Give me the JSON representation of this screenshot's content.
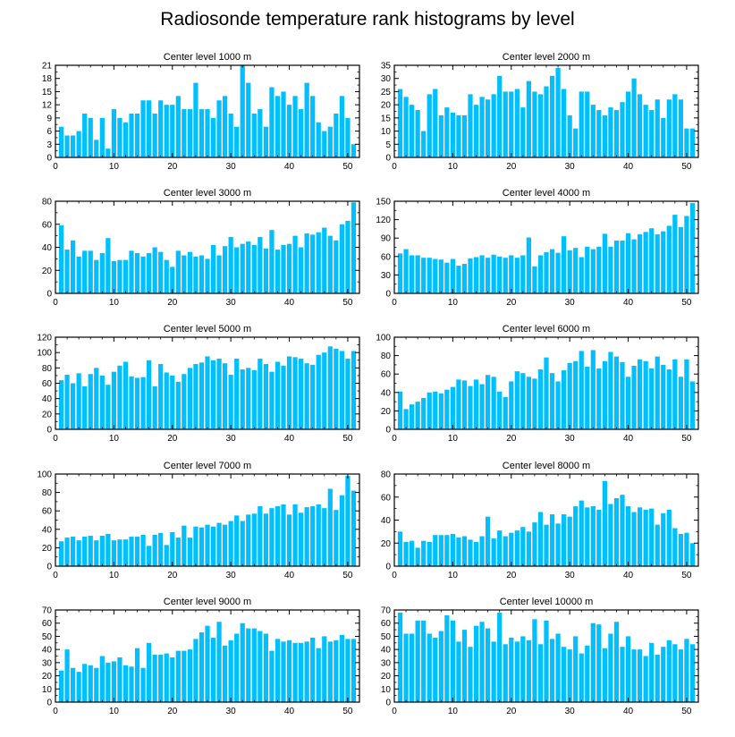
{
  "title": "Radiosonde temperature rank histograms by level",
  "colors": {
    "bar": "#00bfff",
    "axis": "#000000",
    "background": "#ffffff"
  },
  "chart_data": [
    {
      "type": "bar",
      "title": "Center level 1000 m",
      "xlabel": "",
      "ylabel": "",
      "xlim": [
        0,
        52
      ],
      "ylim": [
        0,
        21
      ],
      "xticks": [
        0,
        10,
        20,
        30,
        40,
        50
      ],
      "yticks": [
        0,
        3,
        6,
        9,
        12,
        15,
        18,
        21
      ],
      "x": [
        1,
        2,
        3,
        4,
        5,
        6,
        7,
        8,
        9,
        10,
        11,
        12,
        13,
        14,
        15,
        16,
        17,
        18,
        19,
        20,
        21,
        22,
        23,
        24,
        25,
        26,
        27,
        28,
        29,
        30,
        31,
        32,
        33,
        34,
        35,
        36,
        37,
        38,
        39,
        40,
        41,
        42,
        43,
        44,
        45,
        46,
        47,
        48,
        49,
        50,
        51
      ],
      "values": [
        7,
        5,
        5,
        6,
        10,
        9,
        4,
        9,
        2,
        11,
        9,
        8,
        10,
        10,
        13,
        13,
        10,
        13,
        12,
        12,
        14,
        11,
        11,
        17,
        11,
        11,
        9,
        13,
        14,
        10,
        7,
        21,
        17,
        10,
        11,
        7,
        16,
        14,
        15,
        12,
        14,
        11,
        17,
        14,
        8,
        6,
        7,
        10,
        14,
        9,
        3
      ]
    },
    {
      "type": "bar",
      "title": "Center level 2000 m",
      "xlabel": "",
      "ylabel": "",
      "xlim": [
        0,
        52
      ],
      "ylim": [
        0,
        35
      ],
      "xticks": [
        0,
        10,
        20,
        30,
        40,
        50
      ],
      "yticks": [
        0,
        5,
        10,
        15,
        20,
        25,
        30,
        35
      ],
      "x": [
        1,
        2,
        3,
        4,
        5,
        6,
        7,
        8,
        9,
        10,
        11,
        12,
        13,
        14,
        15,
        16,
        17,
        18,
        19,
        20,
        21,
        22,
        23,
        24,
        25,
        26,
        27,
        28,
        29,
        30,
        31,
        32,
        33,
        34,
        35,
        36,
        37,
        38,
        39,
        40,
        41,
        42,
        43,
        44,
        45,
        46,
        47,
        48,
        49,
        50,
        51
      ],
      "values": [
        26,
        23,
        20,
        18,
        10,
        24,
        26,
        16,
        19,
        17,
        16,
        16,
        24,
        20,
        23,
        22,
        24,
        31,
        25,
        25,
        26,
        19,
        29,
        25,
        24,
        27,
        31,
        34,
        26,
        16,
        11,
        25,
        25,
        20,
        18,
        16,
        19,
        18,
        21,
        25,
        30,
        24,
        20,
        18,
        22,
        15,
        22,
        24,
        22,
        11,
        11
      ]
    },
    {
      "type": "bar",
      "title": "Center level 3000 m",
      "xlabel": "",
      "ylabel": "",
      "xlim": [
        0,
        52
      ],
      "ylim": [
        0,
        80
      ],
      "xticks": [
        0,
        10,
        20,
        30,
        40,
        50
      ],
      "yticks": [
        0,
        20,
        40,
        60,
        80
      ],
      "x": [
        1,
        2,
        3,
        4,
        5,
        6,
        7,
        8,
        9,
        10,
        11,
        12,
        13,
        14,
        15,
        16,
        17,
        18,
        19,
        20,
        21,
        22,
        23,
        24,
        25,
        26,
        27,
        28,
        29,
        30,
        31,
        32,
        33,
        34,
        35,
        36,
        37,
        38,
        39,
        40,
        41,
        42,
        43,
        44,
        45,
        46,
        47,
        48,
        49,
        50,
        51
      ],
      "values": [
        59,
        38,
        46,
        32,
        37,
        37,
        29,
        35,
        48,
        28,
        29,
        29,
        37,
        35,
        32,
        35,
        40,
        36,
        29,
        23,
        37,
        33,
        36,
        32,
        33,
        30,
        42,
        33,
        41,
        49,
        40,
        43,
        45,
        42,
        49,
        39,
        55,
        38,
        42,
        43,
        50,
        40,
        52,
        51,
        53,
        57,
        50,
        46,
        60,
        63,
        79
      ]
    },
    {
      "type": "bar",
      "title": "Center level 4000 m",
      "xlabel": "",
      "ylabel": "",
      "xlim": [
        0,
        52
      ],
      "ylim": [
        0,
        150
      ],
      "xticks": [
        0,
        10,
        20,
        30,
        40,
        50
      ],
      "yticks": [
        0,
        30,
        60,
        90,
        120,
        150
      ],
      "x": [
        1,
        2,
        3,
        4,
        5,
        6,
        7,
        8,
        9,
        10,
        11,
        12,
        13,
        14,
        15,
        16,
        17,
        18,
        19,
        20,
        21,
        22,
        23,
        24,
        25,
        26,
        27,
        28,
        29,
        30,
        31,
        32,
        33,
        34,
        35,
        36,
        37,
        38,
        39,
        40,
        41,
        42,
        43,
        44,
        45,
        46,
        47,
        48,
        49,
        50,
        51
      ],
      "values": [
        65,
        72,
        62,
        62,
        58,
        58,
        56,
        55,
        50,
        56,
        45,
        48,
        57,
        59,
        62,
        58,
        63,
        60,
        58,
        62,
        58,
        62,
        91,
        44,
        62,
        67,
        72,
        66,
        93,
        70,
        74,
        59,
        76,
        72,
        76,
        97,
        76,
        86,
        86,
        98,
        88,
        96,
        100,
        106,
        96,
        101,
        110,
        128,
        108,
        126,
        147
      ]
    },
    {
      "type": "bar",
      "title": "Center level 5000 m",
      "xlabel": "",
      "ylabel": "",
      "xlim": [
        0,
        52
      ],
      "ylim": [
        0,
        120
      ],
      "xticks": [
        0,
        10,
        20,
        30,
        40,
        50
      ],
      "yticks": [
        0,
        20,
        40,
        60,
        80,
        100,
        120
      ],
      "x": [
        1,
        2,
        3,
        4,
        5,
        6,
        7,
        8,
        9,
        10,
        11,
        12,
        13,
        14,
        15,
        16,
        17,
        18,
        19,
        20,
        21,
        22,
        23,
        24,
        25,
        26,
        27,
        28,
        29,
        30,
        31,
        32,
        33,
        34,
        35,
        36,
        37,
        38,
        39,
        40,
        41,
        42,
        43,
        44,
        45,
        46,
        47,
        48,
        49,
        50,
        51
      ],
      "values": [
        64,
        71,
        60,
        73,
        56,
        72,
        80,
        70,
        58,
        75,
        83,
        88,
        69,
        67,
        68,
        90,
        56,
        85,
        74,
        70,
        62,
        72,
        80,
        85,
        87,
        95,
        90,
        92,
        86,
        71,
        92,
        78,
        80,
        77,
        92,
        85,
        75,
        88,
        83,
        95,
        94,
        92,
        86,
        84,
        97,
        100,
        108,
        105,
        102,
        92,
        102
      ]
    },
    {
      "type": "bar",
      "title": "Center level 6000 m",
      "xlabel": "",
      "ylabel": "",
      "xlim": [
        0,
        52
      ],
      "ylim": [
        0,
        100
      ],
      "xticks": [
        0,
        10,
        20,
        30,
        40,
        50
      ],
      "yticks": [
        0,
        20,
        40,
        60,
        80,
        100
      ],
      "x": [
        1,
        2,
        3,
        4,
        5,
        6,
        7,
        8,
        9,
        10,
        11,
        12,
        13,
        14,
        15,
        16,
        17,
        18,
        19,
        20,
        21,
        22,
        23,
        24,
        25,
        26,
        27,
        28,
        29,
        30,
        31,
        32,
        33,
        34,
        35,
        36,
        37,
        38,
        39,
        40,
        41,
        42,
        43,
        44,
        45,
        46,
        47,
        48,
        49,
        50,
        51
      ],
      "values": [
        41,
        22,
        27,
        30,
        34,
        40,
        41,
        39,
        43,
        46,
        54,
        53,
        47,
        54,
        49,
        59,
        57,
        41,
        35,
        52,
        63,
        61,
        57,
        55,
        65,
        78,
        61,
        52,
        64,
        72,
        74,
        85,
        68,
        86,
        66,
        74,
        84,
        79,
        73,
        57,
        69,
        76,
        74,
        66,
        79,
        70,
        65,
        76,
        57,
        76,
        52
      ]
    },
    {
      "type": "bar",
      "title": "Center level 7000 m",
      "xlabel": "",
      "ylabel": "",
      "xlim": [
        0,
        52
      ],
      "ylim": [
        0,
        100
      ],
      "xticks": [
        0,
        10,
        20,
        30,
        40,
        50
      ],
      "yticks": [
        0,
        20,
        40,
        60,
        80,
        100
      ],
      "x": [
        1,
        2,
        3,
        4,
        5,
        6,
        7,
        8,
        9,
        10,
        11,
        12,
        13,
        14,
        15,
        16,
        17,
        18,
        19,
        20,
        21,
        22,
        23,
        24,
        25,
        26,
        27,
        28,
        29,
        30,
        31,
        32,
        33,
        34,
        35,
        36,
        37,
        38,
        39,
        40,
        41,
        42,
        43,
        44,
        45,
        46,
        47,
        48,
        49,
        50,
        51
      ],
      "values": [
        27,
        31,
        32,
        28,
        32,
        33,
        28,
        33,
        35,
        28,
        29,
        29,
        32,
        32,
        34,
        22,
        34,
        36,
        23,
        37,
        31,
        44,
        31,
        43,
        42,
        45,
        43,
        47,
        45,
        49,
        55,
        49,
        56,
        57,
        65,
        57,
        63,
        65,
        67,
        56,
        67,
        58,
        64,
        65,
        67,
        63,
        84,
        61,
        77,
        98,
        82
      ]
    },
    {
      "type": "bar",
      "title": "Center level 8000 m",
      "xlabel": "",
      "ylabel": "",
      "xlim": [
        0,
        52
      ],
      "ylim": [
        0,
        80
      ],
      "xticks": [
        0,
        10,
        20,
        30,
        40,
        50
      ],
      "yticks": [
        0,
        20,
        40,
        60,
        80
      ],
      "x": [
        1,
        2,
        3,
        4,
        5,
        6,
        7,
        8,
        9,
        10,
        11,
        12,
        13,
        14,
        15,
        16,
        17,
        18,
        19,
        20,
        21,
        22,
        23,
        24,
        25,
        26,
        27,
        28,
        29,
        30,
        31,
        32,
        33,
        34,
        35,
        36,
        37,
        38,
        39,
        40,
        41,
        42,
        43,
        44,
        45,
        46,
        47,
        48,
        49,
        50,
        51
      ],
      "values": [
        30,
        21,
        22,
        16,
        22,
        21,
        27,
        27,
        27,
        28,
        25,
        26,
        23,
        21,
        26,
        43,
        24,
        31,
        26,
        29,
        31,
        34,
        30,
        38,
        47,
        36,
        45,
        37,
        45,
        43,
        52,
        57,
        51,
        52,
        49,
        74,
        54,
        59,
        62,
        52,
        47,
        51,
        49,
        50,
        36,
        46,
        49,
        33,
        28,
        29,
        20
      ]
    },
    {
      "type": "bar",
      "title": "Center level 9000 m",
      "xlabel": "",
      "ylabel": "",
      "xlim": [
        0,
        52
      ],
      "ylim": [
        0,
        70
      ],
      "xticks": [
        0,
        10,
        20,
        30,
        40,
        50
      ],
      "yticks": [
        0,
        10,
        20,
        30,
        40,
        50,
        60,
        70
      ],
      "x": [
        1,
        2,
        3,
        4,
        5,
        6,
        7,
        8,
        9,
        10,
        11,
        12,
        13,
        14,
        15,
        16,
        17,
        18,
        19,
        20,
        21,
        22,
        23,
        24,
        25,
        26,
        27,
        28,
        29,
        30,
        31,
        32,
        33,
        34,
        35,
        36,
        37,
        38,
        39,
        40,
        41,
        42,
        43,
        44,
        45,
        46,
        47,
        48,
        49,
        50,
        51
      ],
      "values": [
        24,
        40,
        26,
        23,
        29,
        28,
        26,
        35,
        30,
        31,
        34,
        28,
        27,
        41,
        26,
        45,
        36,
        36,
        37,
        34,
        39,
        39,
        40,
        48,
        53,
        58,
        49,
        61,
        43,
        47,
        52,
        60,
        56,
        56,
        54,
        52,
        39,
        48,
        46,
        47,
        45,
        45,
        46,
        49,
        41,
        50,
        46,
        47,
        51,
        48,
        48
      ]
    },
    {
      "type": "bar",
      "title": "Center level 10000 m",
      "xlabel": "",
      "ylabel": "",
      "xlim": [
        0,
        52
      ],
      "ylim": [
        0,
        70
      ],
      "xticks": [
        0,
        10,
        20,
        30,
        40,
        50
      ],
      "yticks": [
        0,
        10,
        20,
        30,
        40,
        50,
        60,
        70
      ],
      "x": [
        1,
        2,
        3,
        4,
        5,
        6,
        7,
        8,
        9,
        10,
        11,
        12,
        13,
        14,
        15,
        16,
        17,
        18,
        19,
        20,
        21,
        22,
        23,
        24,
        25,
        26,
        27,
        28,
        29,
        30,
        31,
        32,
        33,
        34,
        35,
        36,
        37,
        38,
        39,
        40,
        41,
        42,
        43,
        44,
        45,
        46,
        47,
        48,
        49,
        50,
        51
      ],
      "values": [
        68,
        52,
        52,
        62,
        62,
        52,
        49,
        54,
        66,
        62,
        46,
        55,
        42,
        58,
        61,
        56,
        46,
        68,
        44,
        49,
        46,
        50,
        47,
        63,
        44,
        62,
        48,
        52,
        42,
        40,
        50,
        37,
        43,
        60,
        59,
        41,
        52,
        61,
        42,
        50,
        40,
        40,
        35,
        45,
        36,
        42,
        47,
        44,
        40,
        48,
        44
      ]
    }
  ]
}
